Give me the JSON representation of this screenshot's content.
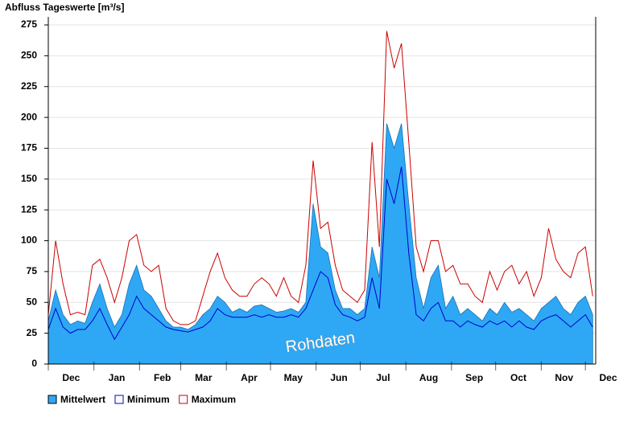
{
  "chart_data": {
    "type": "line",
    "title": "Abfluss Tageswerte [m³/s]",
    "annotation": "Rohdaten",
    "x": [
      0,
      5,
      10,
      15,
      20,
      25,
      30,
      35,
      40,
      45,
      50,
      55,
      60,
      65,
      70,
      75,
      80,
      85,
      90,
      95,
      100,
      105,
      110,
      115,
      120,
      125,
      130,
      135,
      140,
      145,
      150,
      155,
      160,
      165,
      170,
      175,
      180,
      185,
      190,
      195,
      200,
      205,
      210,
      215,
      220,
      225,
      230,
      235,
      240,
      245,
      250,
      255,
      260,
      265,
      270,
      275,
      280,
      285,
      290,
      295,
      300,
      305,
      310,
      315,
      320,
      325,
      330,
      335,
      340,
      345,
      350,
      355,
      360,
      365,
      370
    ],
    "xlim": [
      0,
      372
    ],
    "xticks": [
      {
        "value": 0,
        "label": "Dec"
      },
      {
        "value": 31,
        "label": "Jan"
      },
      {
        "value": 62,
        "label": "Feb"
      },
      {
        "value": 90,
        "label": "Mar"
      },
      {
        "value": 121,
        "label": "Apr"
      },
      {
        "value": 151,
        "label": "May"
      },
      {
        "value": 182,
        "label": "Jun"
      },
      {
        "value": 212,
        "label": "Jul"
      },
      {
        "value": 243,
        "label": "Aug"
      },
      {
        "value": 274,
        "label": "Sep"
      },
      {
        "value": 304,
        "label": "Oct"
      },
      {
        "value": 335,
        "label": "Nov"
      },
      {
        "value": 365,
        "label": "Dec"
      }
    ],
    "ylim": [
      0,
      275
    ],
    "yticks": [
      0,
      25,
      50,
      75,
      100,
      125,
      150,
      175,
      200,
      225,
      250,
      275
    ],
    "grid": true,
    "legend": "bottom",
    "series": [
      {
        "name": "Mittelwert",
        "color": "#2ea8f5",
        "fill": true,
        "values": [
          35,
          60,
          40,
          32,
          35,
          33,
          50,
          65,
          45,
          30,
          40,
          65,
          80,
          60,
          55,
          45,
          35,
          30,
          30,
          28,
          32,
          40,
          45,
          55,
          50,
          42,
          45,
          42,
          47,
          48,
          45,
          42,
          43,
          45,
          42,
          50,
          130,
          95,
          90,
          60,
          45,
          45,
          40,
          45,
          95,
          70,
          195,
          175,
          195,
          130,
          70,
          45,
          70,
          80,
          45,
          55,
          40,
          45,
          40,
          35,
          45,
          40,
          50,
          42,
          45,
          40,
          35,
          45,
          50,
          55,
          45,
          40,
          50,
          55,
          40
        ]
      },
      {
        "name": "Minimum",
        "color": "#0000cc",
        "values": [
          28,
          45,
          30,
          25,
          28,
          28,
          35,
          45,
          32,
          20,
          30,
          40,
          55,
          45,
          40,
          35,
          30,
          28,
          27,
          26,
          28,
          30,
          35,
          45,
          40,
          38,
          38,
          38,
          40,
          38,
          40,
          38,
          38,
          40,
          38,
          45,
          60,
          75,
          70,
          48,
          40,
          38,
          35,
          38,
          70,
          45,
          150,
          130,
          160,
          90,
          40,
          35,
          45,
          50,
          35,
          35,
          30,
          35,
          32,
          30,
          35,
          32,
          35,
          30,
          35,
          30,
          28,
          35,
          38,
          40,
          35,
          30,
          35,
          40,
          30
        ]
      },
      {
        "name": "Maximum",
        "color": "#cc0000",
        "values": [
          40,
          100,
          65,
          40,
          42,
          40,
          80,
          85,
          70,
          50,
          70,
          100,
          105,
          80,
          75,
          80,
          45,
          35,
          32,
          32,
          35,
          55,
          75,
          90,
          70,
          60,
          55,
          55,
          65,
          70,
          65,
          55,
          70,
          55,
          50,
          80,
          165,
          110,
          115,
          80,
          60,
          55,
          50,
          60,
          180,
          95,
          270,
          240,
          260,
          180,
          95,
          75,
          100,
          100,
          75,
          80,
          65,
          65,
          55,
          50,
          75,
          60,
          75,
          80,
          65,
          75,
          55,
          70,
          110,
          85,
          75,
          70,
          90,
          95,
          55
        ]
      }
    ]
  }
}
